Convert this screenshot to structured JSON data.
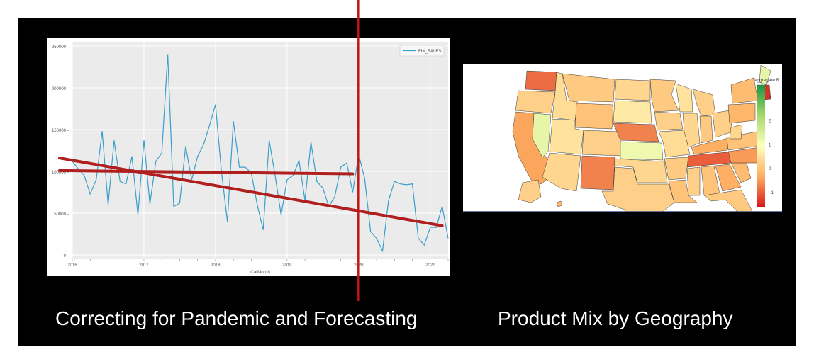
{
  "captions": {
    "left": "Correcting for Pandemic and Forecasting",
    "right": "Product Mix by Geography"
  },
  "chart_data": [
    {
      "type": "line",
      "title": "",
      "xlabel": "CalMonth",
      "ylabel": "",
      "legend": {
        "entries": [
          "FIN_SALES"
        ],
        "placement": "top-right"
      },
      "grid": true,
      "x": [
        "2016-01",
        "2016-02",
        "2016-03",
        "2016-04",
        "2016-05",
        "2016-06",
        "2016-07",
        "2016-08",
        "2016-09",
        "2016-10",
        "2016-11",
        "2016-12",
        "2017-01",
        "2017-02",
        "2017-03",
        "2017-04",
        "2017-05",
        "2017-06",
        "2017-07",
        "2017-08",
        "2017-09",
        "2017-10",
        "2017-11",
        "2017-12",
        "2018-01",
        "2018-02",
        "2018-03",
        "2018-04",
        "2018-05",
        "2018-06",
        "2018-07",
        "2018-08",
        "2018-09",
        "2018-10",
        "2018-11",
        "2018-12",
        "2019-01",
        "2019-02",
        "2019-03",
        "2019-04",
        "2019-05",
        "2019-06",
        "2019-07",
        "2019-08",
        "2019-09",
        "2019-10",
        "2019-11",
        "2019-12",
        "2020-01",
        "2020-02",
        "2020-03",
        "2020-04",
        "2020-05",
        "2020-06",
        "2020-07",
        "2020-08",
        "2020-09",
        "2020-10",
        "2020-11",
        "2020-12",
        "2021-01",
        "2021-02",
        "2021-03",
        "2021-04"
      ],
      "series": [
        {
          "name": "FIN_SALES",
          "color": "#3a9fca",
          "values": [
            112000,
            103000,
            95000,
            73000,
            90000,
            148000,
            60000,
            137000,
            88000,
            85000,
            118000,
            48000,
            137000,
            61000,
            112000,
            122000,
            240000,
            58000,
            62000,
            130000,
            90000,
            118000,
            132000,
            155000,
            180000,
            100000,
            40000,
            160000,
            105000,
            105000,
            98000,
            60000,
            30000,
            137000,
            95000,
            48000,
            90000,
            95000,
            113000,
            65000,
            135000,
            88000,
            80000,
            58000,
            70000,
            105000,
            110000,
            75000,
            120000,
            92000,
            28000,
            20000,
            5000,
            65000,
            88000,
            85000,
            84000,
            85000,
            20000,
            12000,
            33000,
            33000,
            58000,
            20000
          ]
        }
      ],
      "xticks": [
        "2016",
        "2017",
        "2018",
        "2019",
        "2020",
        "2021"
      ],
      "yticks": [
        0,
        50000,
        100000,
        150000,
        200000,
        250000
      ],
      "ylim": [
        -5000,
        255000
      ],
      "trendlines": [
        {
          "from": [
            "2016-01",
            101000
          ],
          "to": [
            "2019-12",
            97000
          ],
          "color": "#b01e1e"
        },
        {
          "from": [
            "2016-01",
            116000
          ],
          "to": [
            "2021-03",
            35000
          ],
          "color": "#b01e1e"
        }
      ],
      "marker_line": {
        "at": "2020-01",
        "color": "#c11515"
      }
    },
    {
      "type": "heatmap",
      "title": "",
      "colorbar": {
        "label": "Aggregate R",
        "ticks": [
          "3",
          "2",
          "1",
          "0",
          "−1"
        ],
        "tick_values": [
          3,
          2,
          1,
          0,
          -1
        ],
        "range": [
          -1.6,
          3.5
        ],
        "colors": [
          "#d7191c",
          "#fdae61",
          "#ffffbf",
          "#a6d96a",
          "#1a9641"
        ]
      },
      "regions": [
        {
          "id": "WA",
          "value": -0.9
        },
        {
          "id": "OR",
          "value": 0.2
        },
        {
          "id": "CA",
          "value": -0.4
        },
        {
          "id": "NV",
          "value": 1.3
        },
        {
          "id": "ID",
          "value": 0.4
        },
        {
          "id": "MT",
          "value": 0.1
        },
        {
          "id": "WY",
          "value": 0.0
        },
        {
          "id": "UT",
          "value": 0.5
        },
        {
          "id": "AZ",
          "value": 0.3
        },
        {
          "id": "CO",
          "value": 0.2
        },
        {
          "id": "NM",
          "value": -0.7
        },
        {
          "id": "ND",
          "value": 0.3
        },
        {
          "id": "SD",
          "value": 0.6
        },
        {
          "id": "NE",
          "value": -0.7
        },
        {
          "id": "KS",
          "value": 1.2
        },
        {
          "id": "OK",
          "value": 0.3
        },
        {
          "id": "TX",
          "value": 0.2
        },
        {
          "id": "MN",
          "value": 0.1
        },
        {
          "id": "IA",
          "value": 0.2
        },
        {
          "id": "MO",
          "value": 0.4
        },
        {
          "id": "AR",
          "value": 0.1
        },
        {
          "id": "LA",
          "value": 0.0
        },
        {
          "id": "WI",
          "value": 0.5
        },
        {
          "id": "IL",
          "value": 0.3
        },
        {
          "id": "MI",
          "value": 0.2
        },
        {
          "id": "IN",
          "value": 0.1
        },
        {
          "id": "OH",
          "value": 0.2
        },
        {
          "id": "KY",
          "value": -0.3
        },
        {
          "id": "TN",
          "value": -1.0
        },
        {
          "id": "MS",
          "value": 0.2
        },
        {
          "id": "AL",
          "value": 0.0
        },
        {
          "id": "GA",
          "value": -0.3
        },
        {
          "id": "FL",
          "value": 0.1
        },
        {
          "id": "SC",
          "value": -0.1
        },
        {
          "id": "NC",
          "value": -0.5
        },
        {
          "id": "VA",
          "value": 0.0
        },
        {
          "id": "WV",
          "value": 0.3
        },
        {
          "id": "PA",
          "value": -0.2
        },
        {
          "id": "NY",
          "value": -0.1
        },
        {
          "id": "ME",
          "value": 1.3
        },
        {
          "id": "NE_STATES",
          "value": -1.4
        },
        {
          "id": "AK",
          "value": 0.2
        },
        {
          "id": "HI",
          "value": -0.1
        }
      ]
    }
  ]
}
